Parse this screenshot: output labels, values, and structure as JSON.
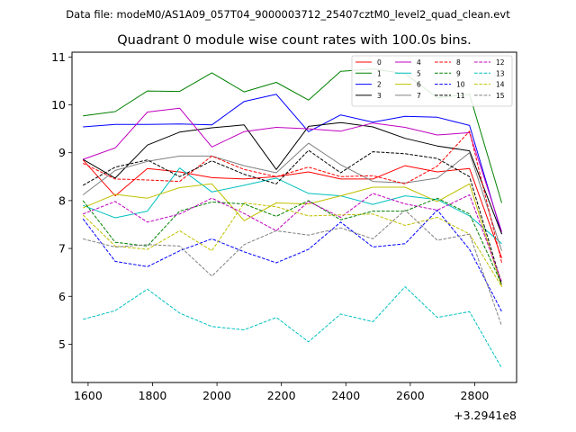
{
  "chart_data": {
    "type": "line",
    "header": "Data file: modeM0/AS1A09_057T04_9000003712_25407cztM0_level2_quad_clean.evt",
    "title": "Quadrant 0 module wise count rates with 100.0s bins.",
    "xlabel": "",
    "ylabel": "",
    "x_offset_label": "+3.2941e8",
    "xlim": [
      1550,
      2930
    ],
    "ylim": [
      4.2,
      11.1
    ],
    "xticks": [
      1600,
      1800,
      2000,
      2200,
      2400,
      2600,
      2800
    ],
    "xtick_labels": [
      "1600",
      "1800",
      "2000",
      "2200",
      "2400",
      "2600",
      "2800"
    ],
    "yticks": [
      5,
      6,
      7,
      8,
      9,
      10,
      11
    ],
    "ytick_labels": [
      "5",
      "6",
      "7",
      "8",
      "9",
      "10",
      "11"
    ],
    "grid": false,
    "legend_position": "top-right",
    "x": [
      1584,
      1684,
      1784,
      1884,
      1984,
      2084,
      2184,
      2284,
      2384,
      2484,
      2584,
      2684,
      2784,
      2884
    ],
    "series": [
      {
        "name": "0",
        "color": "#ff0000",
        "dash": "solid",
        "values": [
          8.85,
          8.1,
          8.67,
          8.6,
          8.48,
          8.45,
          8.5,
          8.6,
          8.45,
          8.45,
          8.73,
          8.6,
          8.67,
          6.8
        ]
      },
      {
        "name": "1",
        "color": "#008000",
        "dash": "solid",
        "values": [
          9.77,
          9.86,
          10.29,
          10.28,
          10.67,
          10.27,
          10.47,
          10.1,
          10.7,
          10.75,
          10.65,
          10.15,
          10.22,
          7.95
        ]
      },
      {
        "name": "2",
        "color": "#0000ff",
        "dash": "solid",
        "values": [
          9.54,
          9.59,
          9.59,
          9.6,
          9.58,
          10.07,
          10.22,
          9.44,
          9.79,
          9.64,
          9.76,
          9.74,
          9.57,
          7.3
        ]
      },
      {
        "name": "3",
        "color": "#000000",
        "dash": "solid",
        "values": [
          8.86,
          8.47,
          9.16,
          9.43,
          9.52,
          9.58,
          8.65,
          9.55,
          9.63,
          9.54,
          9.3,
          9.14,
          9.04,
          7.3
        ]
      },
      {
        "name": "4",
        "color": "#c000c0",
        "dash": "solid",
        "values": [
          8.86,
          9.1,
          9.85,
          9.93,
          9.12,
          9.44,
          9.53,
          9.5,
          9.45,
          9.62,
          9.53,
          9.37,
          9.42,
          7.35
        ]
      },
      {
        "name": "5",
        "color": "#00c0c0",
        "dash": "solid",
        "values": [
          7.9,
          7.64,
          7.78,
          8.68,
          8.18,
          8.32,
          8.47,
          8.15,
          8.1,
          7.92,
          8.1,
          8.02,
          7.68,
          7.1
        ]
      },
      {
        "name": "6",
        "color": "#c0c000",
        "dash": "solid",
        "values": [
          7.85,
          8.13,
          8.05,
          8.27,
          8.35,
          7.58,
          7.95,
          7.93,
          8.1,
          8.28,
          8.28,
          7.98,
          8.35,
          6.2
        ]
      },
      {
        "name": "7",
        "color": "#808080",
        "dash": "solid",
        "values": [
          8.12,
          8.63,
          8.82,
          8.93,
          8.93,
          8.73,
          8.58,
          9.2,
          8.75,
          8.4,
          8.37,
          8.47,
          9.0,
          6.95
        ]
      },
      {
        "name": "8",
        "color": "#ff0000",
        "dash": "dashed",
        "values": [
          8.78,
          8.45,
          8.43,
          8.4,
          8.93,
          8.65,
          8.5,
          8.7,
          8.5,
          8.52,
          8.35,
          8.72,
          9.45,
          6.7
        ]
      },
      {
        "name": "9",
        "color": "#008000",
        "dash": "dashed",
        "values": [
          8.0,
          7.13,
          7.05,
          7.78,
          7.97,
          7.93,
          7.67,
          8.0,
          7.6,
          7.78,
          7.78,
          8.05,
          7.72,
          6.25
        ]
      },
      {
        "name": "10",
        "color": "#0000ff",
        "dash": "dashed",
        "values": [
          7.62,
          6.73,
          6.62,
          6.95,
          7.2,
          6.93,
          6.7,
          6.98,
          7.55,
          7.03,
          7.1,
          7.8,
          6.98,
          5.68
        ]
      },
      {
        "name": "11",
        "color": "#000000",
        "dash": "dashed",
        "values": [
          8.32,
          8.7,
          8.85,
          8.5,
          8.83,
          8.55,
          8.35,
          9.05,
          8.58,
          9.02,
          8.98,
          8.88,
          8.5,
          6.25
        ]
      },
      {
        "name": "12",
        "color": "#c000c0",
        "dash": "dashed",
        "values": [
          7.72,
          7.98,
          7.55,
          7.72,
          8.05,
          7.73,
          7.37,
          7.98,
          7.65,
          8.15,
          7.93,
          7.8,
          8.12,
          6.3
        ]
      },
      {
        "name": "13",
        "color": "#00c0c0",
        "dash": "dashed",
        "values": [
          5.52,
          5.7,
          6.15,
          5.65,
          5.37,
          5.3,
          5.56,
          5.05,
          5.63,
          5.47,
          6.2,
          5.56,
          5.68,
          4.5
        ]
      },
      {
        "name": "14",
        "color": "#c0c000",
        "dash": "dashed",
        "values": [
          7.7,
          7.05,
          6.98,
          7.37,
          6.95,
          7.95,
          7.87,
          7.68,
          7.7,
          7.72,
          7.48,
          7.65,
          7.3,
          6.2
        ]
      },
      {
        "name": "15",
        "color": "#808080",
        "dash": "dashed",
        "values": [
          7.2,
          7.03,
          7.08,
          7.05,
          6.42,
          7.08,
          7.37,
          7.28,
          7.43,
          7.2,
          7.8,
          7.17,
          7.3,
          5.38
        ]
      }
    ]
  }
}
